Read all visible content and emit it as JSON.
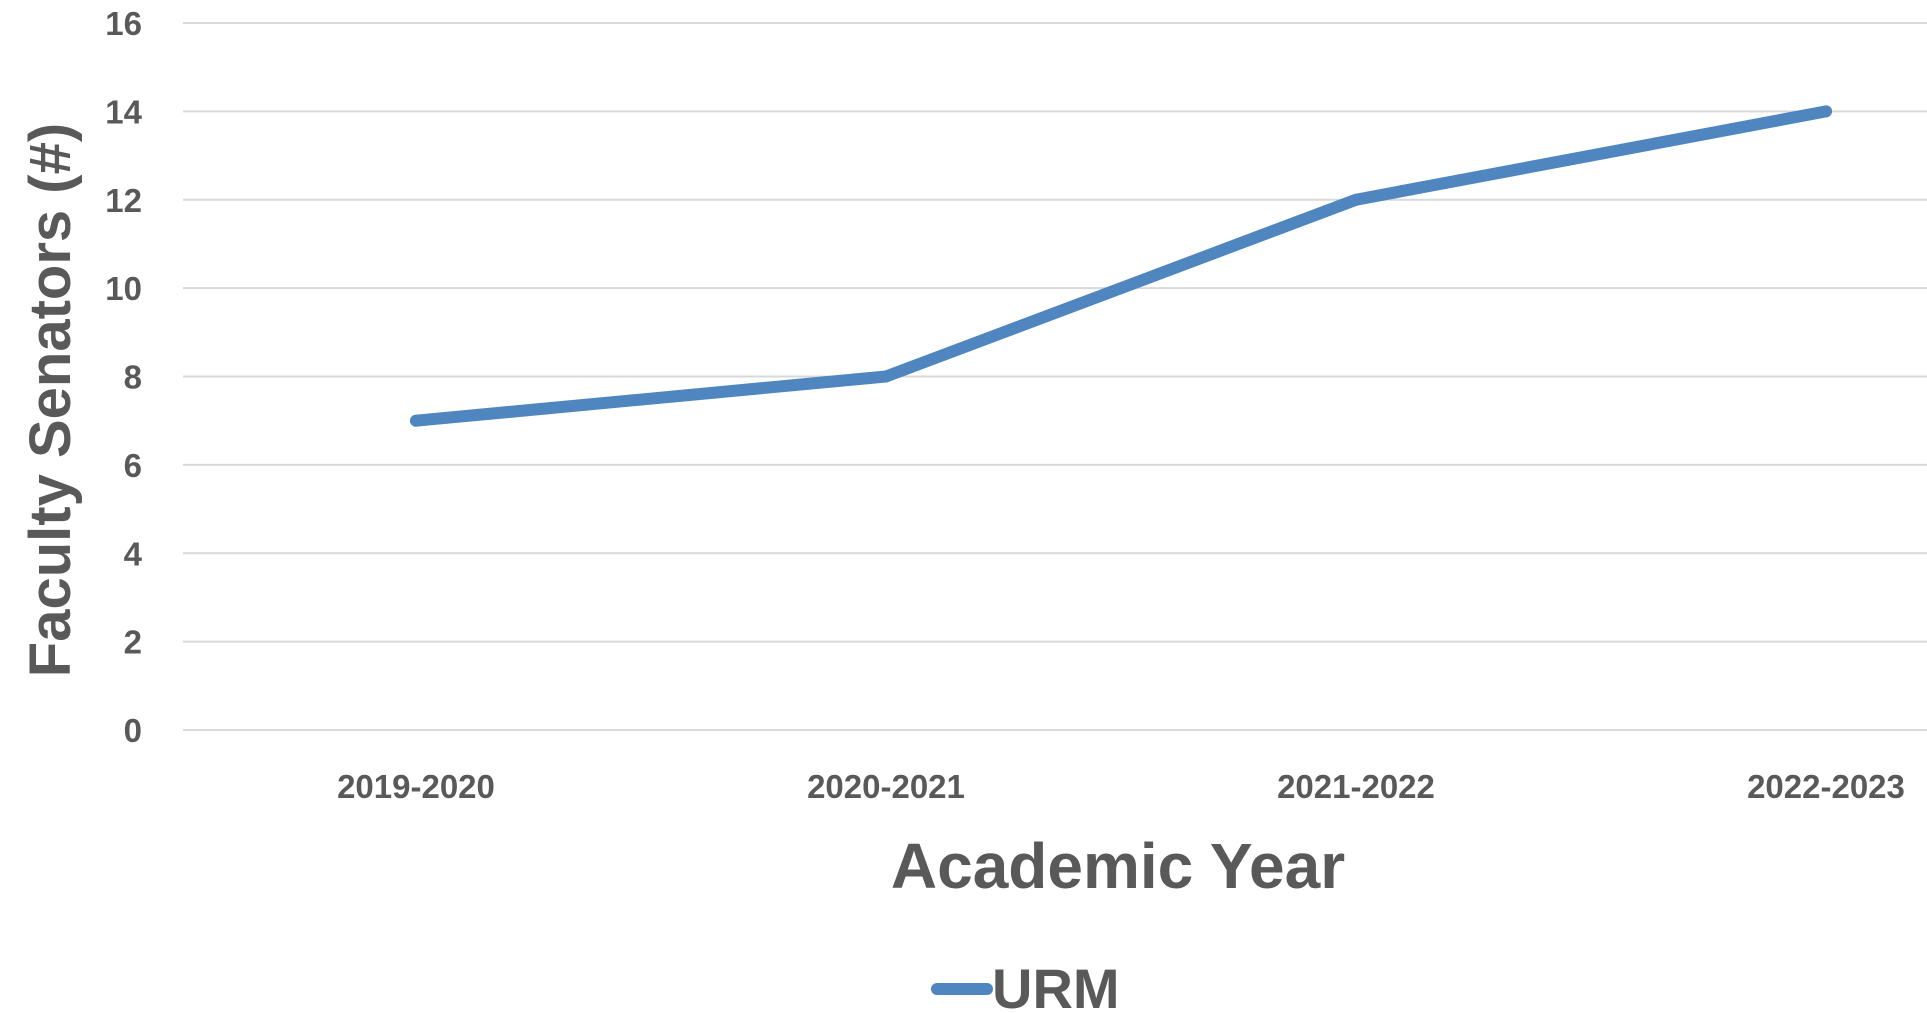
{
  "chart_data": {
    "type": "line",
    "title": "",
    "xlabel": "Academic Year",
    "ylabel": "Faculty Senators (#)",
    "categories": [
      "2019-2020",
      "2020-2021",
      "2021-2022",
      "2022-2023"
    ],
    "series": [
      {
        "name": "URM",
        "color": "#4f86c0",
        "values": [
          7,
          8,
          12,
          14
        ]
      }
    ],
    "ylim": [
      0,
      16
    ],
    "yticks": [
      0,
      2,
      4,
      6,
      8,
      10,
      12,
      14,
      16
    ],
    "grid": true,
    "legend_position": "bottom-center",
    "colors": {
      "grid": "#d9d9d9",
      "text": "#595959"
    }
  }
}
